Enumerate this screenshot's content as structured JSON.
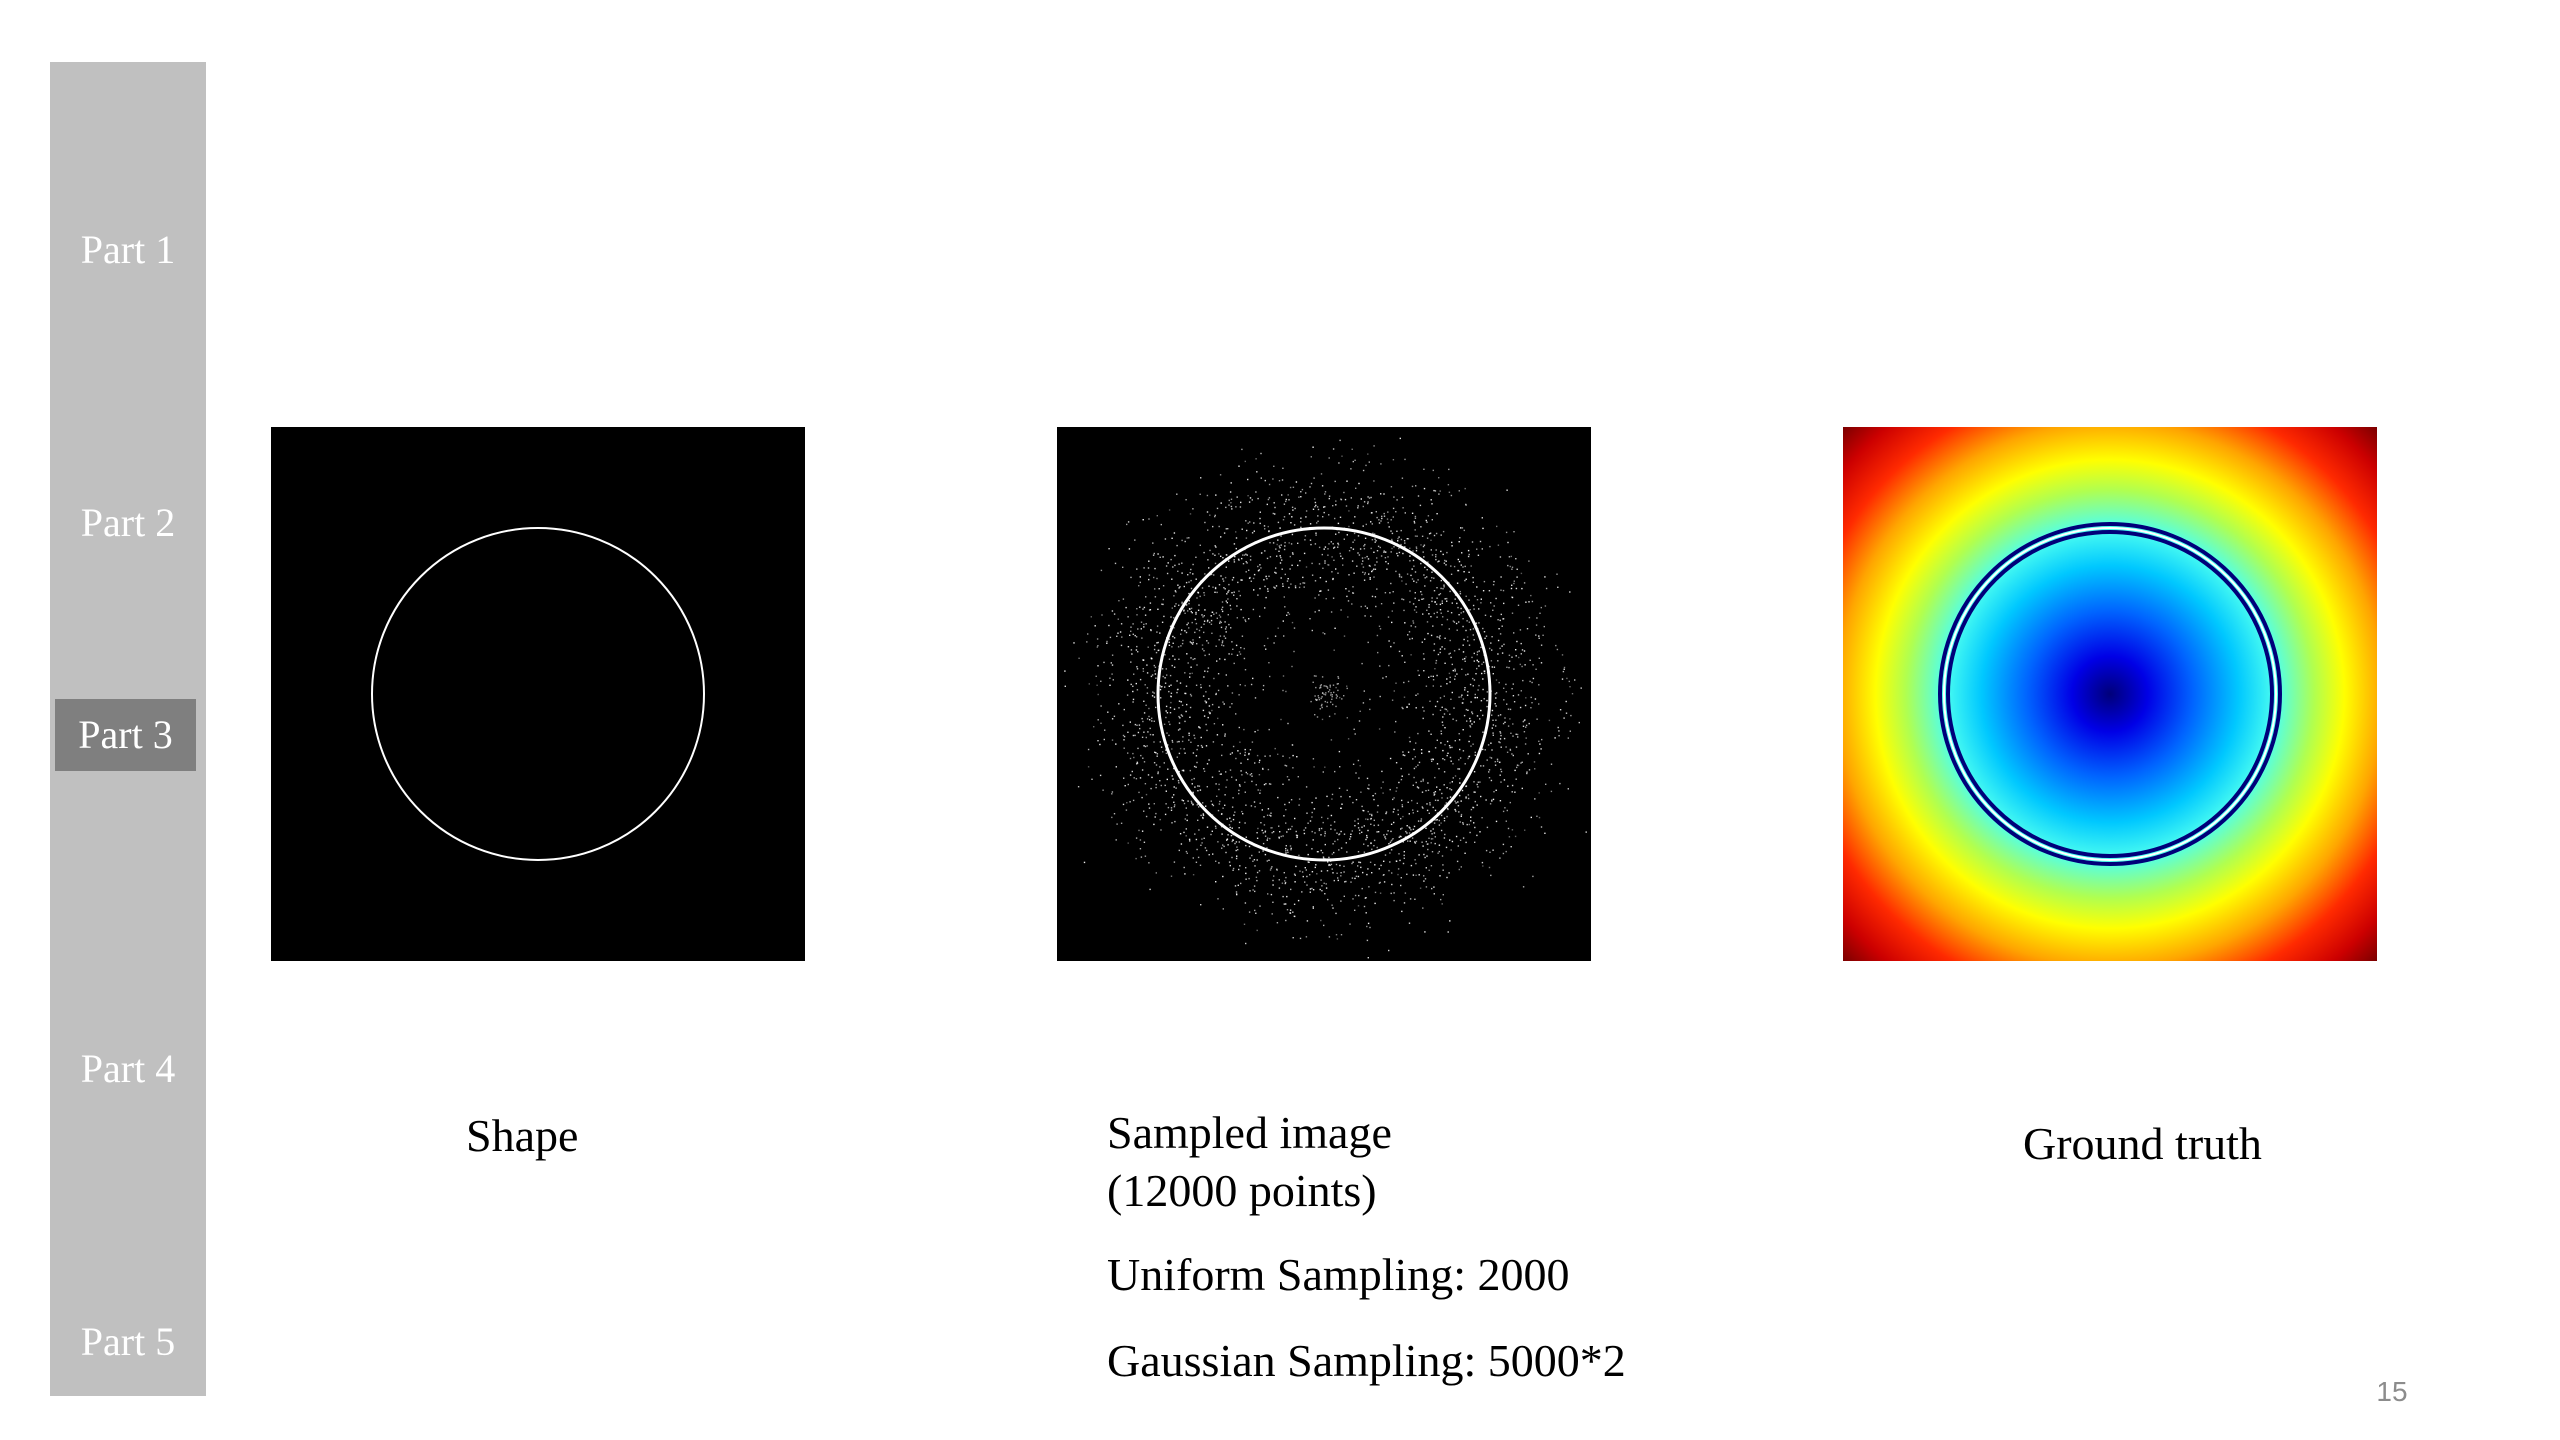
{
  "sidebar": {
    "items": [
      {
        "label": "Part 1",
        "active": false
      },
      {
        "label": "Part 2",
        "active": false
      },
      {
        "label": "Part 3",
        "active": true
      },
      {
        "label": "Part 4",
        "active": false
      },
      {
        "label": "Part 5",
        "active": false
      }
    ],
    "background_color": "#c0c0c0",
    "active_color": "#7f7f7f",
    "text_color": "#ffffff"
  },
  "panels": {
    "shape": {
      "caption": "Shape"
    },
    "sampled": {
      "caption_line1": "Sampled image",
      "caption_line2": "(12000 points)",
      "uniform": "Uniform Sampling: 2000",
      "gaussian": "Gaussian Sampling: 5000*2"
    },
    "truth": {
      "caption": "Ground truth"
    }
  },
  "page_number": "15"
}
